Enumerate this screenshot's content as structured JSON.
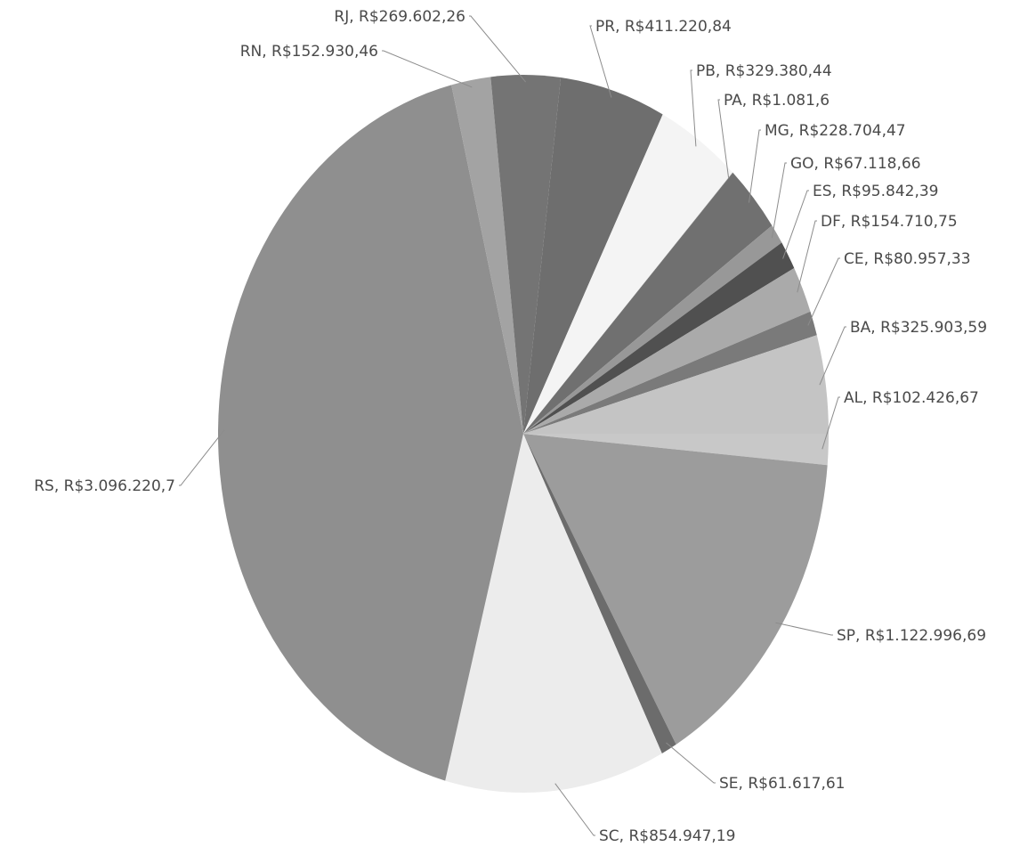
{
  "chart_data": {
    "type": "pie",
    "title": "",
    "legend": "none",
    "slices": [
      {
        "label": "AL, R$102.426,67",
        "value": 102426.67,
        "color": "#c8c8c8"
      },
      {
        "label": "SP, R$1.122.996,69",
        "value": 1122996.69,
        "color": "#9c9c9c"
      },
      {
        "label": "SE, R$61.617,61",
        "value": 61617.61,
        "color": "#6c6c6c"
      },
      {
        "label": "SC, R$854.947,19",
        "value": 854947.19,
        "color": "#ececec"
      },
      {
        "label": "RS, R$3.096.220,7",
        "value": 3096220.7,
        "color": "#8f8f8f"
      },
      {
        "label": "RN, R$152.930,46",
        "value": 152930.46,
        "color": "#a3a3a3"
      },
      {
        "label": "RJ, R$269.602,26",
        "value": 269602.26,
        "color": "#747474"
      },
      {
        "label": "PR, R$411.220,84",
        "value": 411220.84,
        "color": "#6e6e6e"
      },
      {
        "label": "PB, R$329.380,44",
        "value": 329380.44,
        "color": "#f4f4f4"
      },
      {
        "label": "PA, R$1.081,6",
        "value": 1081.6,
        "color": "#808080"
      },
      {
        "label": "MG, R$228.704,47",
        "value": 228704.47,
        "color": "#707070"
      },
      {
        "label": "GO, R$67.118,66",
        "value": 67118.66,
        "color": "#989898"
      },
      {
        "label": "ES, R$95.842,39",
        "value": 95842.39,
        "color": "#505050"
      },
      {
        "label": "DF, R$154.710,75",
        "value": 154710.75,
        "color": "#aaaaaa"
      },
      {
        "label": "CE, R$80.957,33",
        "value": 80957.33,
        "color": "#7a7a7a"
      },
      {
        "label": "BA, R$325.903,59",
        "value": 325903.59,
        "color": "#c4c4c4"
      }
    ]
  }
}
